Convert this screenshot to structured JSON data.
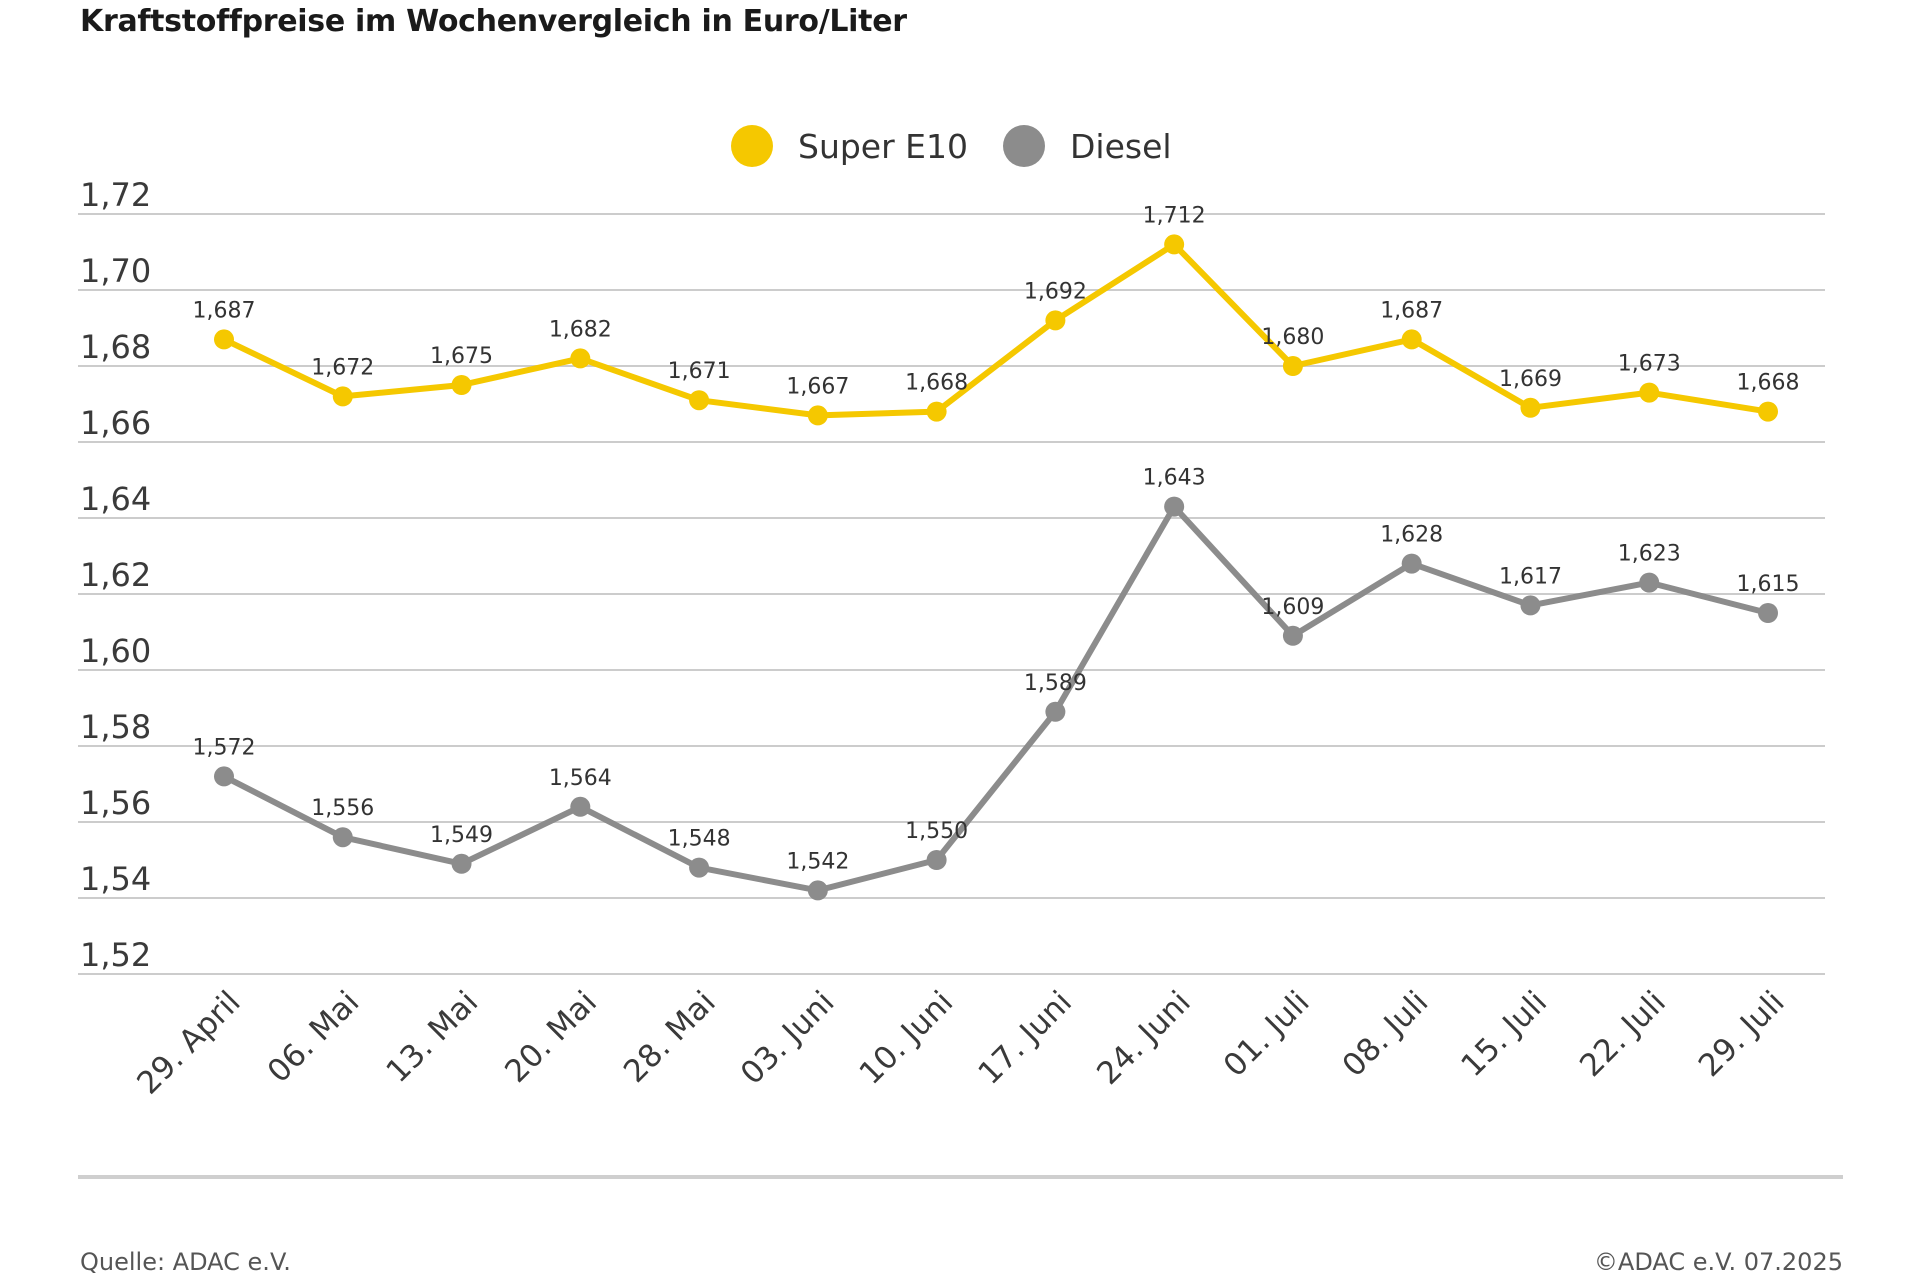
{
  "chart_data": {
    "type": "line",
    "title": "Kraftstoffpreise im Wochenvergleich in Euro/Liter",
    "xlabel": "",
    "ylabel": "",
    "categories": [
      "29. April",
      "06. Mai",
      "13. Mai",
      "20. Mai",
      "28. Mai",
      "03. Juni",
      "10. Juni",
      "17. Juni",
      "24. Juni",
      "01. Juli",
      "08. Juli",
      "15. Juli",
      "22. Juli",
      "29. Juli"
    ],
    "y_ticks": [
      "1,52",
      "1,54",
      "1,56",
      "1,58",
      "1,60",
      "1,62",
      "1,64",
      "1,66",
      "1,68",
      "1,70",
      "1,72"
    ],
    "ylim": [
      1.52,
      1.72
    ],
    "grid": true,
    "legend_position": "top-center",
    "series": [
      {
        "name": "Super E10",
        "color": "#f5c800",
        "values": [
          1.687,
          1.672,
          1.675,
          1.682,
          1.671,
          1.667,
          1.668,
          1.692,
          1.712,
          1.68,
          1.687,
          1.669,
          1.673,
          1.668
        ],
        "labels": [
          "1,687",
          "1,672",
          "1,675",
          "1,682",
          "1,671",
          "1,667",
          "1,668",
          "1,692",
          "1,712",
          "1,680",
          "1,687",
          "1,669",
          "1,673",
          "1,668"
        ]
      },
      {
        "name": "Diesel",
        "color": "#8c8c8c",
        "values": [
          1.572,
          1.556,
          1.549,
          1.564,
          1.548,
          1.542,
          1.55,
          1.589,
          1.643,
          1.609,
          1.628,
          1.617,
          1.623,
          1.615
        ],
        "labels": [
          "1,572",
          "1,556",
          "1,549",
          "1,564",
          "1,548",
          "1,542",
          "1,550",
          "1,589",
          "1,643",
          "1,609",
          "1,628",
          "1,617",
          "1,623",
          "1,615"
        ]
      }
    ]
  },
  "footer": {
    "source": "Quelle: ADAC e.V.",
    "copyright": "©ADAC e.V. 07.2025"
  },
  "colors": {
    "gridline": "#cccccc",
    "rule": "#cfcfcf"
  }
}
